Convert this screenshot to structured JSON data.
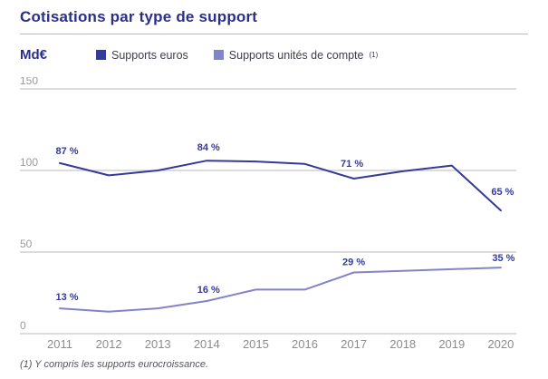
{
  "title": "Cotisations par type de support",
  "unit_label": "Md€",
  "footnote": "(1) Y compris les supports eurocroissance.",
  "colors": {
    "title": "#2b2f8c",
    "grid": "#c6c6c6",
    "ytick_text": "#9b9b9b",
    "xtick_text": "#8c8c8c",
    "euros": "#343a9b",
    "uc": "#8184c9"
  },
  "chart_data": {
    "type": "line",
    "title": "Cotisations par type de support",
    "ylabel": "Md€",
    "ylim": [
      0,
      150
    ],
    "yticks": [
      0,
      50,
      100,
      150
    ],
    "grid": "horizontal",
    "legend_position": "top",
    "categories": [
      2011,
      2012,
      2013,
      2014,
      2015,
      2016,
      2017,
      2018,
      2019,
      2020
    ],
    "series": [
      {
        "name": "Supports euros",
        "sup": "",
        "color": "#343a9b",
        "values": [
          104.5,
          97,
          100,
          106,
          105.5,
          104,
          95,
          99.5,
          103,
          75.5
        ],
        "point_labels": {
          "0": "87 %",
          "3": "84 %",
          "6": "71 %",
          "9": "65 %"
        }
      },
      {
        "name": "Supports unités de compte",
        "sup": "(1)",
        "color": "#8184c9",
        "values": [
          15.5,
          13.5,
          15.5,
          20,
          27,
          27,
          37.5,
          38.5,
          39.5,
          40.5
        ],
        "point_labels": {
          "0": "13 %",
          "3": "16 %",
          "6": "29 %",
          "9": "35 %"
        }
      }
    ]
  }
}
